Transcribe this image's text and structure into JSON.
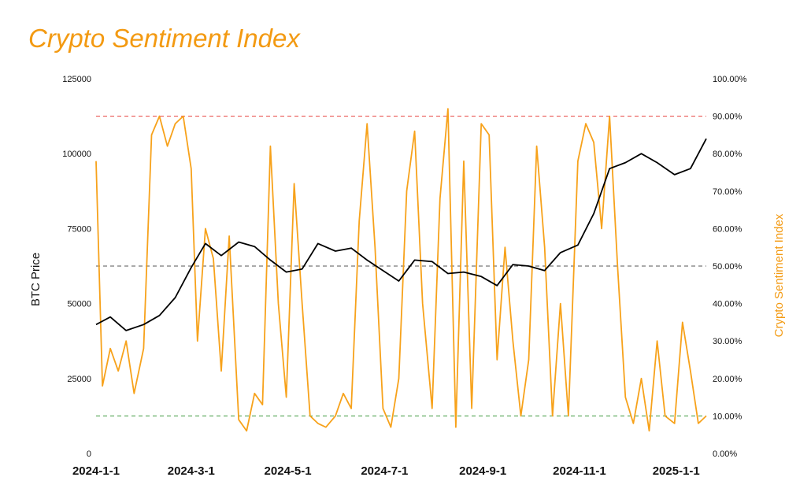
{
  "title": "Crypto Sentiment Index",
  "chart_data": {
    "type": "line",
    "y_left_label": "BTC Price",
    "y_right_label": "Crypto Sentiment Index",
    "y_left_ticks": [
      "0",
      "25000",
      "50000",
      "75000",
      "100000",
      "125000"
    ],
    "y_left_range": [
      0,
      125000
    ],
    "y_right_ticks": [
      "0.00%",
      "10.00%",
      "20.00%",
      "30.00%",
      "40.00%",
      "50.00%",
      "60.00%",
      "70.00%",
      "80.00%",
      "90.00%",
      "100.00%"
    ],
    "y_right_range": [
      0,
      1.0
    ],
    "x_ticks": [
      "2024-1-1",
      "2024-3-1",
      "2024-5-1",
      "2024-7-1",
      "2024-9-1",
      "2024-11-1",
      "2025-1-1"
    ],
    "x_range": [
      "2024-01-01",
      "2025-01-20"
    ],
    "reference_lines": [
      {
        "value": 0.9,
        "color": "#e8413c"
      },
      {
        "value": 0.5,
        "color": "#555555"
      },
      {
        "value": 0.1,
        "color": "#3f9a3f"
      }
    ],
    "grid": false,
    "series": [
      {
        "name": "BTC Price",
        "axis": "left",
        "color": "#000000",
        "x": [
          "2024-01-01",
          "2024-01-10",
          "2024-01-20",
          "2024-01-31",
          "2024-02-10",
          "2024-02-20",
          "2024-03-01",
          "2024-03-10",
          "2024-03-20",
          "2024-03-31",
          "2024-04-10",
          "2024-04-20",
          "2024-04-30",
          "2024-05-10",
          "2024-05-20",
          "2024-05-31",
          "2024-06-10",
          "2024-06-20",
          "2024-06-30",
          "2024-07-10",
          "2024-07-20",
          "2024-07-31",
          "2024-08-10",
          "2024-08-20",
          "2024-08-31",
          "2024-09-10",
          "2024-09-20",
          "2024-09-30",
          "2024-10-10",
          "2024-10-20",
          "2024-10-31",
          "2024-11-10",
          "2024-11-20",
          "2024-11-30",
          "2024-12-10",
          "2024-12-20",
          "2024-12-31",
          "2025-01-10",
          "2025-01-20"
        ],
        "values": [
          43000,
          45500,
          41000,
          43000,
          46000,
          52000,
          62000,
          70000,
          66000,
          70500,
          69000,
          64500,
          60500,
          61500,
          70000,
          67500,
          68500,
          64500,
          61000,
          57500,
          64500,
          64000,
          60000,
          60500,
          59000,
          56000,
          63000,
          62500,
          61000,
          67000,
          69500,
          80000,
          95000,
          97000,
          100000,
          97000,
          93000,
          95000,
          105000
        ]
      },
      {
        "name": "Crypto Sentiment Index",
        "axis": "right",
        "color": "#f7a21b",
        "x": [
          "2024-01-01",
          "2024-01-05",
          "2024-01-10",
          "2024-01-15",
          "2024-01-20",
          "2024-01-25",
          "2024-01-31",
          "2024-02-05",
          "2024-02-10",
          "2024-02-15",
          "2024-02-20",
          "2024-02-25",
          "2024-03-01",
          "2024-03-05",
          "2024-03-10",
          "2024-03-15",
          "2024-03-20",
          "2024-03-25",
          "2024-03-31",
          "2024-04-05",
          "2024-04-10",
          "2024-04-15",
          "2024-04-20",
          "2024-04-25",
          "2024-04-30",
          "2024-05-05",
          "2024-05-10",
          "2024-05-15",
          "2024-05-20",
          "2024-05-25",
          "2024-05-31",
          "2024-06-05",
          "2024-06-10",
          "2024-06-15",
          "2024-06-20",
          "2024-06-25",
          "2024-06-30",
          "2024-07-05",
          "2024-07-10",
          "2024-07-15",
          "2024-07-20",
          "2024-07-25",
          "2024-07-31",
          "2024-08-05",
          "2024-08-10",
          "2024-08-15",
          "2024-08-20",
          "2024-08-25",
          "2024-08-31",
          "2024-09-05",
          "2024-09-10",
          "2024-09-15",
          "2024-09-20",
          "2024-09-25",
          "2024-09-30",
          "2024-10-05",
          "2024-10-10",
          "2024-10-15",
          "2024-10-20",
          "2024-10-25",
          "2024-10-31",
          "2024-11-05",
          "2024-11-10",
          "2024-11-15",
          "2024-11-20",
          "2024-11-25",
          "2024-11-30",
          "2024-12-05",
          "2024-12-10",
          "2024-12-15",
          "2024-12-20",
          "2024-12-25",
          "2024-12-31",
          "2025-01-05",
          "2025-01-10",
          "2025-01-15",
          "2025-01-20"
        ],
        "values": [
          0.78,
          0.18,
          0.28,
          0.22,
          0.3,
          0.16,
          0.28,
          0.85,
          0.9,
          0.82,
          0.88,
          0.9,
          0.76,
          0.3,
          0.6,
          0.52,
          0.22,
          0.58,
          0.09,
          0.06,
          0.16,
          0.13,
          0.82,
          0.4,
          0.15,
          0.72,
          0.4,
          0.1,
          0.08,
          0.07,
          0.1,
          0.16,
          0.12,
          0.62,
          0.88,
          0.55,
          0.12,
          0.07,
          0.2,
          0.7,
          0.86,
          0.4,
          0.12,
          0.68,
          0.92,
          0.07,
          0.78,
          0.12,
          0.88,
          0.85,
          0.25,
          0.55,
          0.3,
          0.1,
          0.25,
          0.82,
          0.55,
          0.1,
          0.4,
          0.1,
          0.78,
          0.88,
          0.83,
          0.6,
          0.9,
          0.5,
          0.15,
          0.08,
          0.2,
          0.06,
          0.3,
          0.1,
          0.08,
          0.35,
          0.22,
          0.08,
          0.1
        ]
      }
    ]
  }
}
